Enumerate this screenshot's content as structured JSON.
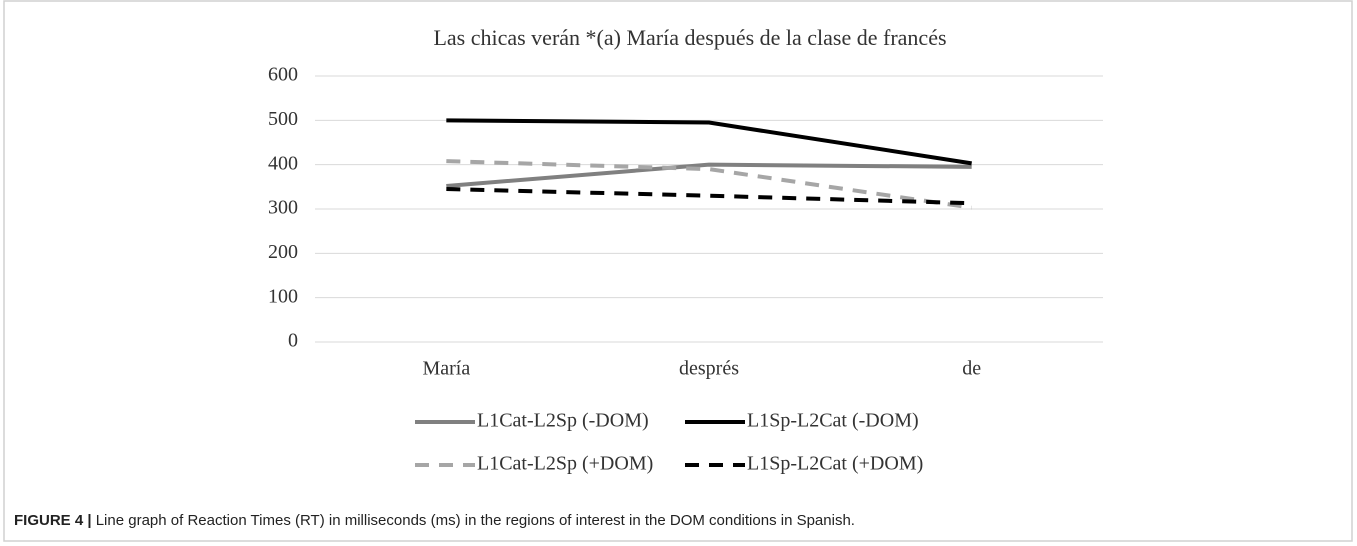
{
  "chart_data": {
    "type": "line",
    "title": "Las chicas verán *(a) María después de la clase de francés",
    "categories": [
      "María",
      "després",
      "de"
    ],
    "series": [
      {
        "name": "L1Cat-L2Sp (-DOM)",
        "color": "#808080",
        "line_style": "solid",
        "values": [
          352,
          400,
          395
        ]
      },
      {
        "name": "L1Sp-L2Cat (-DOM)",
        "color": "#000000",
        "line_style": "solid",
        "values": [
          500,
          495,
          403
        ]
      },
      {
        "name": "L1Cat-L2Sp (+DOM)",
        "color": "#a6a6a6",
        "line_style": "dashed",
        "values": [
          408,
          390,
          303
        ]
      },
      {
        "name": "L1Sp-L2Cat (+DOM)",
        "color": "#000000",
        "line_style": "dashed",
        "values": [
          345,
          330,
          313
        ]
      }
    ],
    "ylim": [
      0,
      600
    ],
    "yticks": [
      0,
      100,
      200,
      300,
      400,
      500,
      600
    ],
    "grid": true,
    "legend": "bottom"
  },
  "caption": {
    "label": "FIGURE 4 |",
    "text": "Line graph of Reaction Times (RT) in milliseconds (ms) in the regions of interest in the DOM conditions in Spanish."
  }
}
